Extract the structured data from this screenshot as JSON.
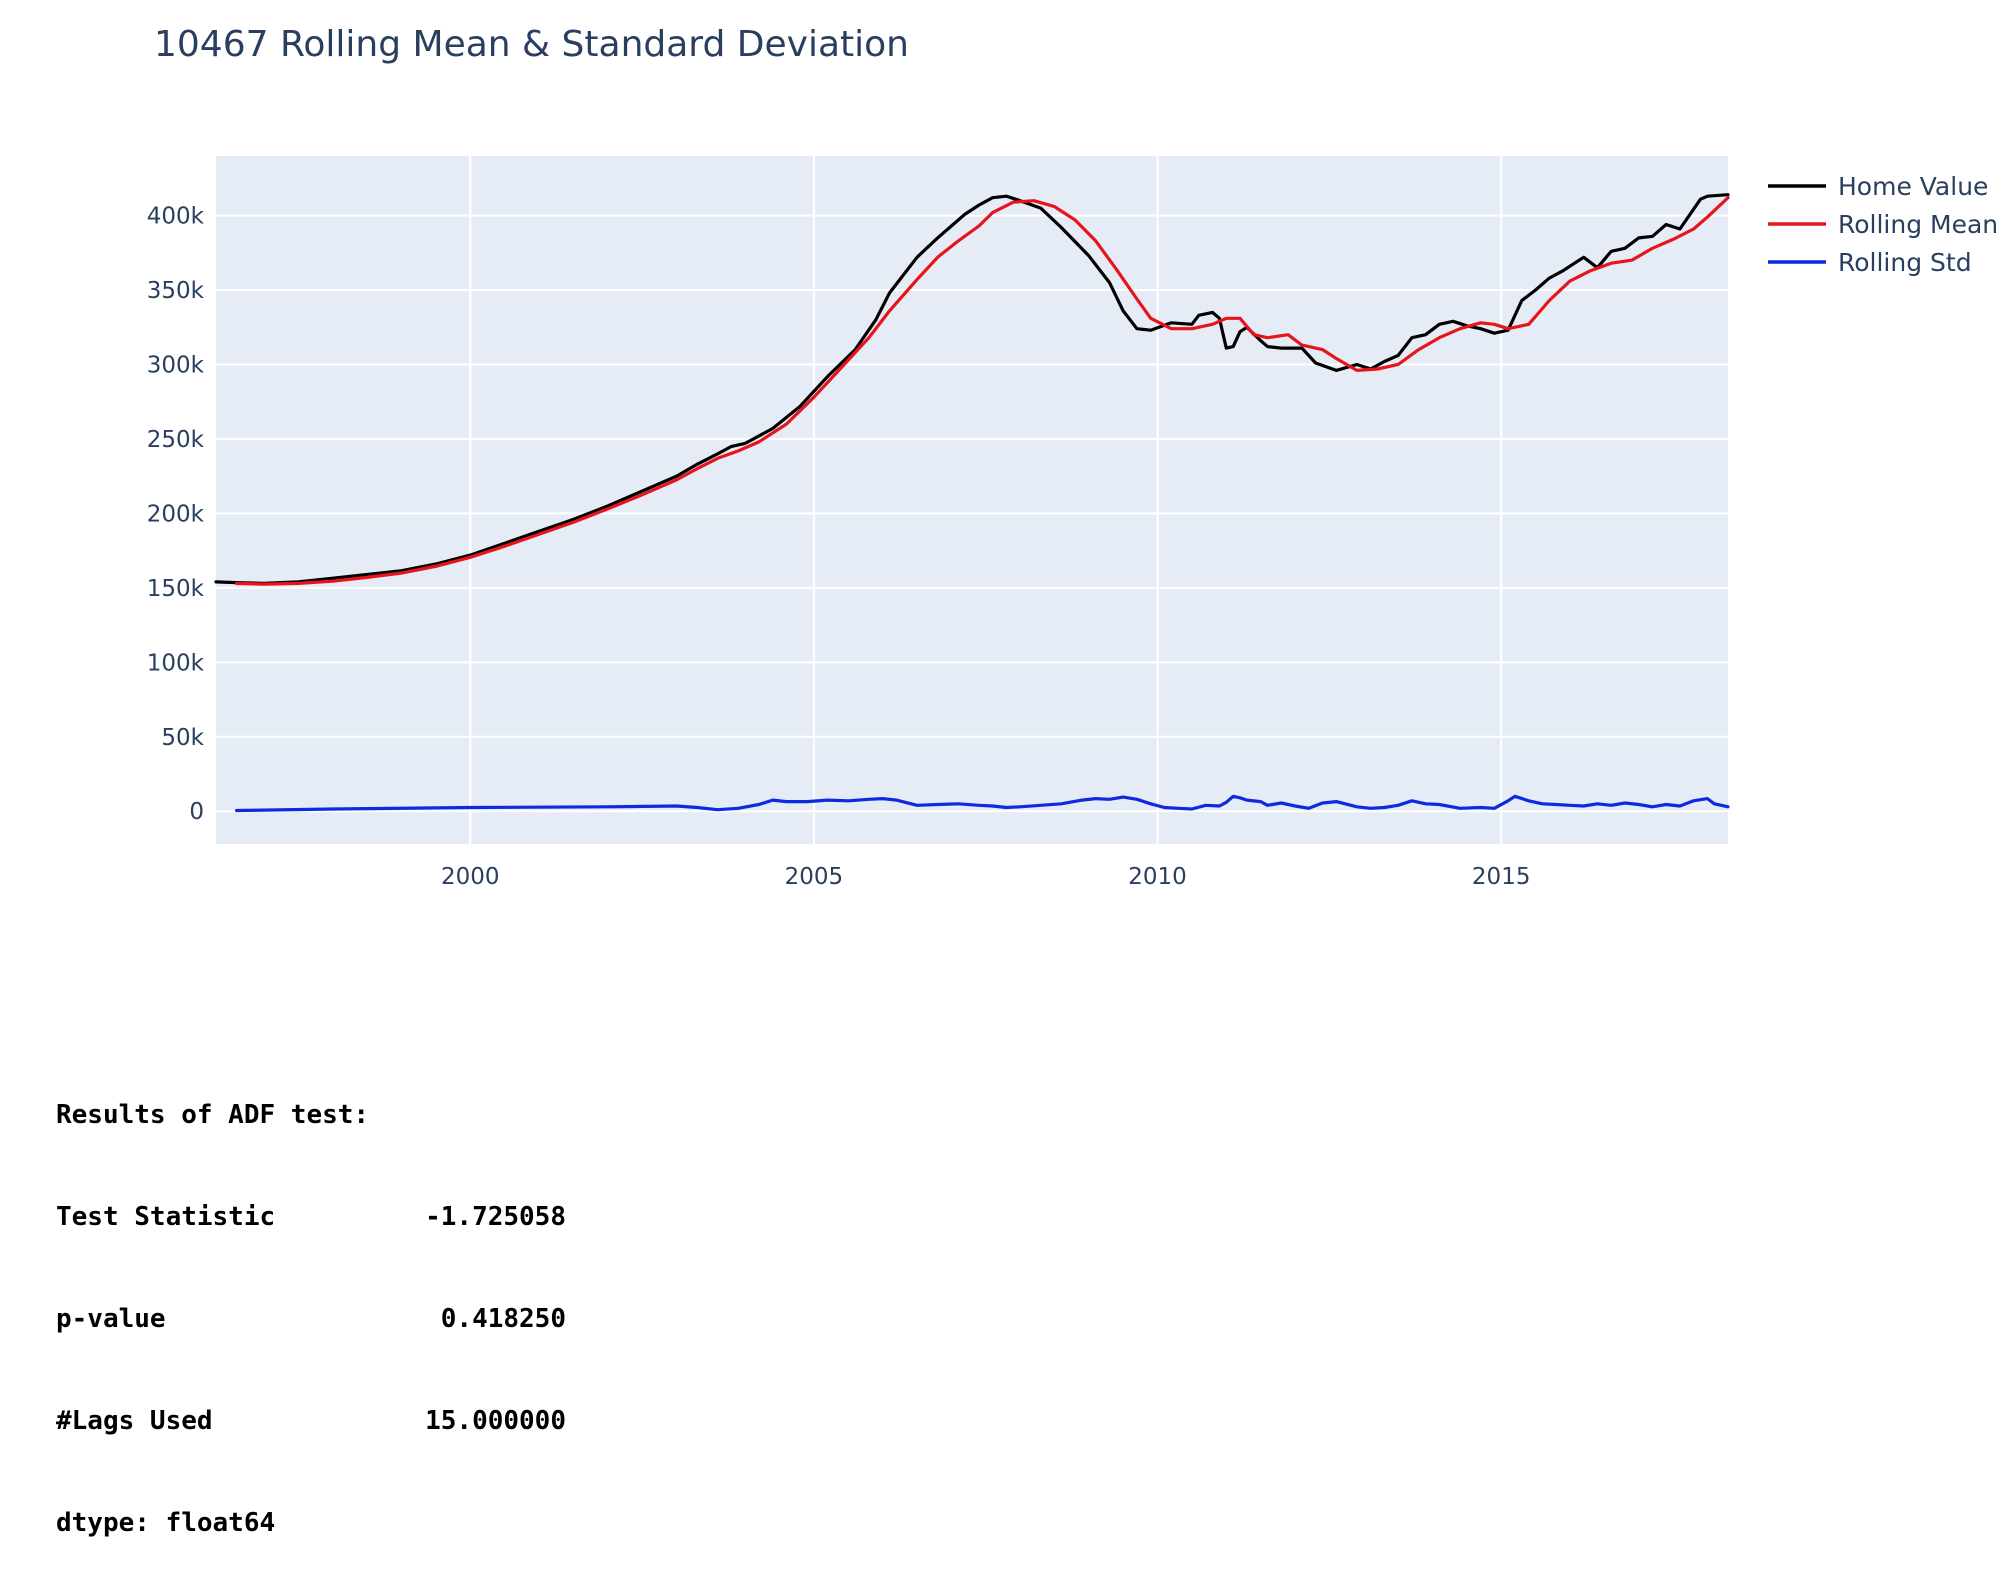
{
  "chart_data": {
    "type": "line",
    "title": "10467 Rolling Mean & Standard Deviation",
    "xlabel": "",
    "ylabel": "",
    "x_range": [
      1996.3,
      2018.3
    ],
    "ylim": [
      -22000,
      440000
    ],
    "x_ticks": [
      {
        "value": 2000,
        "label": "2000"
      },
      {
        "value": 2005,
        "label": "2005"
      },
      {
        "value": 2010,
        "label": "2010"
      },
      {
        "value": 2015,
        "label": "2015"
      }
    ],
    "y_ticks": [
      {
        "value": 0,
        "label": "0"
      },
      {
        "value": 50000,
        "label": "50k"
      },
      {
        "value": 100000,
        "label": "100k"
      },
      {
        "value": 150000,
        "label": "150k"
      },
      {
        "value": 200000,
        "label": "200k"
      },
      {
        "value": 250000,
        "label": "250k"
      },
      {
        "value": 300000,
        "label": "300k"
      },
      {
        "value": 350000,
        "label": "350k"
      },
      {
        "value": 400000,
        "label": "400k"
      }
    ],
    "grid": true,
    "legend_position": "top-right",
    "series": [
      {
        "name": "Home Value",
        "color": "#000000",
        "x": [
          1996.3,
          1996.6,
          1997.0,
          1997.5,
          1998.0,
          1998.5,
          1999.0,
          1999.5,
          2000.0,
          2000.5,
          2001.0,
          2001.5,
          2002.0,
          2002.5,
          2003.0,
          2003.3,
          2003.6,
          2003.8,
          2004.0,
          2004.4,
          2004.8,
          2005.2,
          2005.6,
          2005.9,
          2006.1,
          2006.5,
          2006.8,
          2007.0,
          2007.2,
          2007.4,
          2007.6,
          2007.8,
          2008.0,
          2008.3,
          2008.6,
          2009.0,
          2009.3,
          2009.5,
          2009.7,
          2009.9,
          2010.2,
          2010.5,
          2010.6,
          2010.8,
          2010.9,
          2011.0,
          2011.1,
          2011.2,
          2011.3,
          2011.5,
          2011.6,
          2011.8,
          2012.1,
          2012.3,
          2012.6,
          2012.9,
          2013.1,
          2013.3,
          2013.5,
          2013.7,
          2013.9,
          2014.1,
          2014.3,
          2014.5,
          2014.7,
          2014.9,
          2015.1,
          2015.3,
          2015.5,
          2015.7,
          2015.9,
          2016.0,
          2016.2,
          2016.4,
          2016.6,
          2016.8,
          2017.0,
          2017.2,
          2017.4,
          2017.6,
          2017.9,
          2018.0,
          2018.3
        ],
        "y": [
          154000,
          153500,
          153000,
          154000,
          156500,
          159000,
          161500,
          166000,
          172000,
          180000,
          188000,
          196000,
          205000,
          215000,
          225000,
          233000,
          240000,
          245000,
          247000,
          257000,
          272000,
          292000,
          310000,
          330000,
          348000,
          372000,
          385000,
          393000,
          401000,
          407000,
          412000,
          413000,
          410000,
          405000,
          392000,
          373000,
          355000,
          336000,
          324000,
          323000,
          328000,
          327000,
          333000,
          335000,
          331000,
          311000,
          312000,
          322000,
          325000,
          316000,
          312000,
          311000,
          311000,
          301000,
          296000,
          300000,
          297000,
          302000,
          306000,
          318000,
          320000,
          327000,
          329000,
          326000,
          324000,
          321000,
          323000,
          343000,
          350000,
          358000,
          363000,
          366000,
          372000,
          365000,
          376000,
          378000,
          385000,
          386000,
          394000,
          391000,
          411000,
          413000,
          414000
        ]
      },
      {
        "name": "Rolling Mean",
        "color": "#e8141c",
        "x": [
          1996.6,
          1997.0,
          1997.5,
          1998.0,
          1998.5,
          1999.0,
          1999.5,
          2000.0,
          2000.5,
          2001.0,
          2001.5,
          2002.0,
          2002.5,
          2003.0,
          2003.3,
          2003.6,
          2003.9,
          2004.2,
          2004.6,
          2005.0,
          2005.4,
          2005.8,
          2006.1,
          2006.5,
          2006.8,
          2007.1,
          2007.4,
          2007.6,
          2007.9,
          2008.2,
          2008.5,
          2008.8,
          2009.1,
          2009.4,
          2009.7,
          2009.9,
          2010.2,
          2010.5,
          2010.8,
          2011.0,
          2011.2,
          2011.4,
          2011.6,
          2011.9,
          2012.1,
          2012.4,
          2012.6,
          2012.9,
          2013.2,
          2013.5,
          2013.8,
          2014.1,
          2014.4,
          2014.7,
          2014.9,
          2015.1,
          2015.4,
          2015.7,
          2016.0,
          2016.3,
          2016.6,
          2016.9,
          2017.2,
          2017.5,
          2017.8,
          2018.0,
          2018.3
        ],
        "y": [
          153000,
          152500,
          153000,
          154500,
          157000,
          160000,
          164500,
          170500,
          178000,
          186000,
          194000,
          203000,
          212500,
          222500,
          230000,
          237000,
          242000,
          248000,
          260000,
          278000,
          298000,
          318000,
          336000,
          357000,
          372000,
          383000,
          393000,
          402000,
          409000,
          410000,
          406000,
          397000,
          383000,
          364000,
          344000,
          331000,
          324000,
          324000,
          327000,
          331000,
          331000,
          320000,
          318000,
          320000,
          313000,
          310000,
          304000,
          296000,
          297000,
          300000,
          310000,
          318000,
          324000,
          328000,
          327000,
          324000,
          327000,
          343000,
          356000,
          363000,
          368000,
          370000,
          378000,
          384000,
          391000,
          399000,
          412000
        ]
      },
      {
        "name": "Rolling Std",
        "color": "#0f29e0",
        "x": [
          1996.6,
          1998.0,
          2000.0,
          2002.0,
          2003.0,
          2003.3,
          2003.6,
          2003.9,
          2004.2,
          2004.4,
          2004.6,
          2004.9,
          2005.2,
          2005.5,
          2005.8,
          2006.0,
          2006.2,
          2006.5,
          2006.8,
          2007.1,
          2007.4,
          2007.6,
          2007.8,
          2008.0,
          2008.3,
          2008.6,
          2008.9,
          2009.1,
          2009.3,
          2009.5,
          2009.7,
          2009.9,
          2010.1,
          2010.3,
          2010.5,
          2010.7,
          2010.9,
          2011.0,
          2011.1,
          2011.2,
          2011.3,
          2011.5,
          2011.6,
          2011.8,
          2012.0,
          2012.2,
          2012.4,
          2012.6,
          2012.9,
          2013.1,
          2013.3,
          2013.5,
          2013.7,
          2013.9,
          2014.1,
          2014.4,
          2014.7,
          2014.9,
          2015.1,
          2015.2,
          2015.4,
          2015.6,
          2015.8,
          2016.0,
          2016.2,
          2016.4,
          2016.6,
          2016.8,
          2017.0,
          2017.2,
          2017.4,
          2017.6,
          2017.8,
          2018.0,
          2018.1,
          2018.3
        ],
        "y": [
          500,
          1500,
          2500,
          3000,
          3500,
          2500,
          1000,
          2000,
          4500,
          7500,
          6500,
          6500,
          7500,
          7000,
          8000,
          8500,
          7500,
          4000,
          4500,
          5000,
          4000,
          3500,
          2500,
          3000,
          4000,
          5000,
          7500,
          8500,
          8000,
          9500,
          8000,
          5000,
          2500,
          2000,
          1500,
          4000,
          3500,
          6000,
          10000,
          9000,
          7500,
          6500,
          4000,
          5500,
          3500,
          2000,
          5500,
          6500,
          3000,
          2000,
          2500,
          4000,
          7000,
          5000,
          4500,
          2000,
          2500,
          2000,
          7000,
          10000,
          7000,
          5000,
          4500,
          4000,
          3500,
          5000,
          4000,
          5500,
          4500,
          3000,
          4500,
          3500,
          7000,
          8500,
          5000,
          3000
        ]
      }
    ]
  },
  "adf": {
    "header": "Results of ADF test:",
    "rows": [
      {
        "key": "Test Statistic",
        "value": "-1.725058"
      },
      {
        "key": "p-value",
        "value": "0.418250"
      },
      {
        "key": "#Lags Used",
        "value": "15.000000"
      }
    ],
    "dtype_line": "dtype: float64"
  }
}
